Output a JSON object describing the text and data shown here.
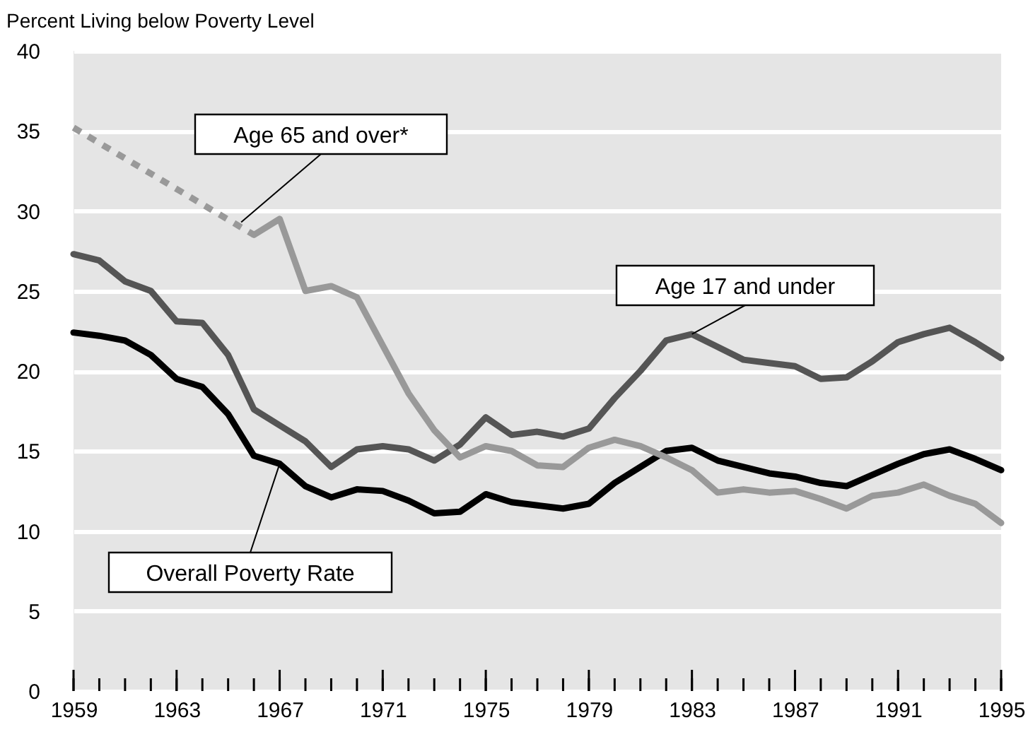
{
  "chart_data": {
    "type": "line",
    "ylabel": "Percent Living below Poverty Level",
    "xlim": [
      1959,
      1995
    ],
    "ylim": [
      0,
      40
    ],
    "yticks": [
      0,
      5,
      10,
      15,
      20,
      25,
      30,
      35,
      40
    ],
    "xticks": [
      1959,
      {
        "value": 1960,
        "label": null
      },
      {
        "value": 1961,
        "label": null
      },
      {
        "value": 1962,
        "label": null
      },
      1963,
      {
        "value": 1964,
        "label": null
      },
      {
        "value": 1965,
        "label": null
      },
      {
        "value": 1966,
        "label": null
      },
      1967,
      {
        "value": 1968,
        "label": null
      },
      {
        "value": 1969,
        "label": null
      },
      {
        "value": 1970,
        "label": null
      },
      1971,
      {
        "value": 1972,
        "label": null
      },
      {
        "value": 1973,
        "label": null
      },
      {
        "value": 1974,
        "label": null
      },
      1975,
      {
        "value": 1976,
        "label": null
      },
      {
        "value": 1977,
        "label": null
      },
      {
        "value": 1978,
        "label": null
      },
      1979,
      {
        "value": 1980,
        "label": null
      },
      {
        "value": 1981,
        "label": null
      },
      {
        "value": 1982,
        "label": null
      },
      1983,
      {
        "value": 1984,
        "label": null
      },
      {
        "value": 1985,
        "label": null
      },
      {
        "value": 1986,
        "label": null
      },
      1987,
      {
        "value": 1988,
        "label": null
      },
      {
        "value": 1989,
        "label": null
      },
      {
        "value": 1990,
        "label": null
      },
      1991,
      {
        "value": 1992,
        "label": null
      },
      {
        "value": 1993,
        "label": null
      },
      {
        "value": 1994,
        "label": null
      },
      1995
    ],
    "grid": "y",
    "legend": false,
    "line_style": "solid",
    "x": [
      1959,
      1960,
      1961,
      1962,
      1963,
      1964,
      1965,
      1966,
      1967,
      1968,
      1969,
      1970,
      1971,
      1972,
      1973,
      1974,
      1975,
      1976,
      1977,
      1978,
      1979,
      1980,
      1981,
      1982,
      1983,
      1984,
      1985,
      1986,
      1987,
      1988,
      1989,
      1990,
      1991,
      1992,
      1993,
      1994,
      1995
    ],
    "series": [
      {
        "name": "Overall Poverty Rate",
        "color": "#000000",
        "values": [
          22.4,
          22.2,
          21.9,
          21.0,
          19.5,
          19.0,
          17.3,
          14.7,
          14.2,
          12.8,
          12.1,
          12.6,
          12.5,
          11.9,
          11.1,
          11.2,
          12.3,
          11.8,
          11.6,
          11.4,
          11.7,
          13.0,
          14.0,
          15.0,
          15.2,
          14.4,
          14.0,
          13.6,
          13.4,
          13.0,
          12.8,
          13.5,
          14.2,
          14.8,
          15.1,
          14.5,
          13.8
        ]
      },
      {
        "name": "Age 17 and under",
        "color": "#555555",
        "values": [
          27.3,
          26.9,
          25.6,
          25.0,
          23.1,
          23.0,
          21.0,
          17.6,
          16.6,
          15.6,
          14.0,
          15.1,
          15.3,
          15.1,
          14.4,
          15.4,
          17.1,
          16.0,
          16.2,
          15.9,
          16.4,
          18.3,
          20.0,
          21.9,
          22.3,
          21.5,
          20.7,
          20.5,
          20.3,
          19.5,
          19.6,
          20.6,
          21.8,
          22.3,
          22.7,
          21.8,
          20.8
        ]
      },
      {
        "color": "#999999",
        "line_style": "dotted",
        "x": [
          1959,
          1966
        ],
        "values": [
          35.2,
          28.5
        ]
      },
      {
        "name": "Age 65 and over*",
        "color": "#999999",
        "x": [
          1966,
          1967,
          1968,
          1969,
          1970,
          1971,
          1972,
          1973,
          1974,
          1975,
          1976,
          1977,
          1978,
          1979,
          1980,
          1981,
          1982,
          1983,
          1984,
          1985,
          1986,
          1987,
          1988,
          1989,
          1990,
          1991,
          1992,
          1993,
          1994,
          1995
        ],
        "values": [
          28.5,
          29.5,
          25.0,
          25.3,
          24.6,
          21.6,
          18.6,
          16.3,
          14.6,
          15.3,
          15.0,
          14.1,
          14.0,
          15.2,
          15.7,
          15.3,
          14.6,
          13.8,
          12.4,
          12.6,
          12.4,
          12.5,
          12.0,
          11.4,
          12.2,
          12.4,
          12.9,
          12.2,
          11.7,
          10.5
        ]
      }
    ]
  }
}
